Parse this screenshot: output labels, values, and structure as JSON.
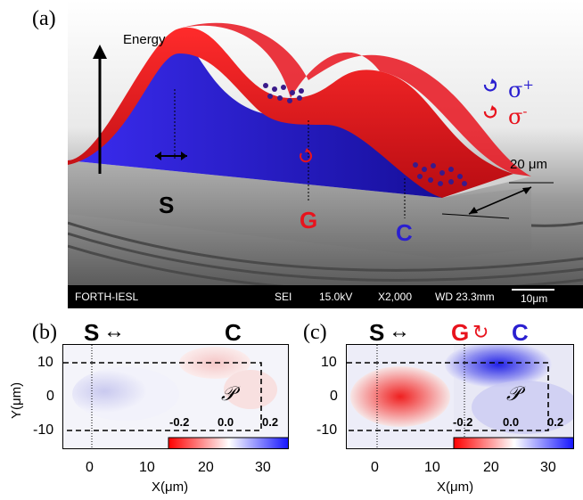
{
  "panel_a": {
    "label": "(a)",
    "energy_label": "Energy",
    "label_S": "S",
    "label_G": "G",
    "label_C": "C",
    "sigma_plus": "σ",
    "sigma_plus_sup": "+",
    "sigma_minus": "σ",
    "sigma_minus_sup": "-",
    "width_label": "20 μm",
    "sem_bar": {
      "lab": "FORTH-IESL",
      "mode": "SEI",
      "voltage": "15.0kV",
      "mag": "X2,000",
      "wd": "WD 23.3mm",
      "scale": "10μm"
    },
    "colors": {
      "red": "#e8131d",
      "blue": "#2a1fd0"
    }
  },
  "panel_b": {
    "label": "(b)",
    "top_S": "S",
    "top_C": "C",
    "y_axis_label": "Y(μm)",
    "x_axis_label": "X(μm)",
    "y_ticks": [
      "10",
      "0",
      "-10"
    ],
    "x_ticks": [
      "0",
      "10",
      "20",
      "30"
    ],
    "cbar_symbol": "𝒫",
    "cbar_ticks": [
      "-0.2",
      "0.0",
      "0.2"
    ]
  },
  "panel_c": {
    "label": "(c)",
    "top_S": "S",
    "top_G": "G",
    "top_C": "C",
    "y_axis_label": "Y(μm)",
    "x_axis_label": "X(μm)",
    "y_ticks": [
      "10",
      "0",
      "-10"
    ],
    "x_ticks": [
      "0",
      "10",
      "20",
      "30"
    ],
    "cbar_symbol": "𝒫",
    "cbar_ticks": [
      "-0.2",
      "0.0",
      "0.2"
    ]
  }
}
